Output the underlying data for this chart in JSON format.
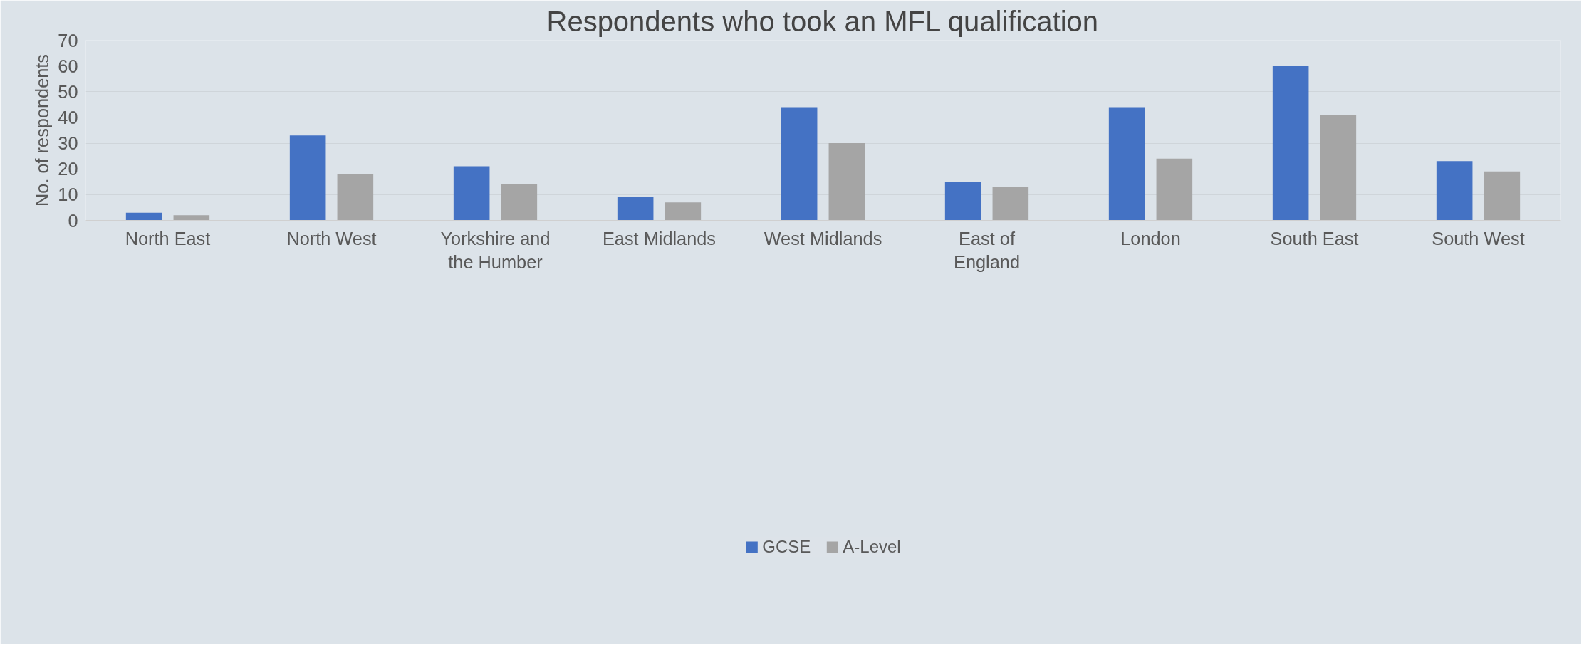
{
  "chart_data": {
    "type": "bar",
    "title": "Respondents who took an MFL qualification",
    "ylabel": "No. of respondents",
    "categories": [
      "North East",
      "North West",
      "Yorkshire and the Humber",
      "East Midlands",
      "West Midlands",
      "East of England",
      "London",
      "South East",
      "South West"
    ],
    "series": [
      {
        "name": "GCSE",
        "color": "#4472c4",
        "values": [
          3,
          33,
          21,
          9,
          44,
          15,
          44,
          60,
          23
        ]
      },
      {
        "name": "A-Level",
        "color": "#a5a5a5",
        "values": [
          2,
          18,
          14,
          7,
          30,
          13,
          24,
          41,
          19
        ]
      }
    ],
    "ylim": [
      0,
      70
    ],
    "yticks": [
      0,
      10,
      20,
      30,
      40,
      50,
      60,
      70
    ],
    "grid": "y",
    "legend": "bottom"
  }
}
